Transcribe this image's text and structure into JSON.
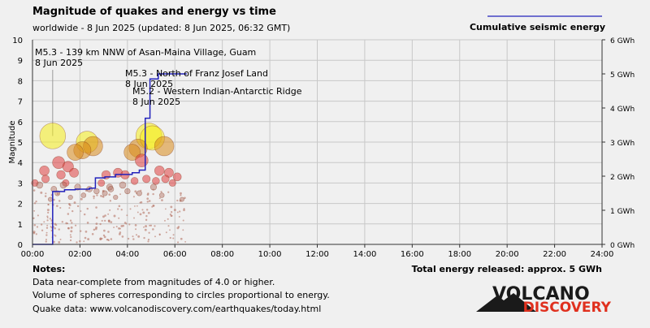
{
  "header": {
    "title": "Magnitude of quakes and energy vs time",
    "subtitle": "worldwide -  8 Jun 2025 (updated: 8 Jun 2025, 06:32 GMT)",
    "legend_label": "Cumulative seismic energy"
  },
  "notes": {
    "heading": "Notes:",
    "lines": [
      "Data near-complete from magnitudes of 4.0 or higher.",
      "Volume of spheres corresponding to circles proportional to energy.",
      "Quake data: www.volcanodiscovery.com/earthquakes/today.html"
    ],
    "total_energy": "Total energy released: approx. 5 GWh"
  },
  "logo": {
    "line1": "VOLCANO",
    "line2": "DISCOVERY"
  },
  "colors": {
    "background": "#f0f0f0",
    "grid": "#c8c8c8",
    "energy_line": "#2222bb",
    "large_quake": "#f5ee1a",
    "medium_quake": "#d98a1a",
    "small_quake": "#e04040",
    "tiny_quake": "#b06a5a",
    "logo_red": "#e0301e"
  },
  "chart_data": {
    "type": "scatter",
    "title": "Magnitude of quakes and energy vs time",
    "ylabel": "Magnitude",
    "y2label": "Cumulative seismic energy",
    "xlim": [
      0,
      24
    ],
    "ylim": [
      0,
      10
    ],
    "y2lim": [
      0,
      6
    ],
    "x_ticks": [
      "00:00",
      "02:00",
      "04:00",
      "06:00",
      "08:00",
      "10:00",
      "12:00",
      "14:00",
      "16:00",
      "18:00",
      "20:00",
      "22:00",
      "24:00"
    ],
    "y_ticks": [
      "0",
      "1",
      "2",
      "3",
      "4",
      "5",
      "6",
      "7",
      "8",
      "9",
      "10"
    ],
    "y2_ticks": [
      "0 GWh",
      "1 GWh",
      "2 GWh",
      "3 GWh",
      "4 GWh",
      "5 GWh",
      "6 GWh"
    ],
    "grid": true,
    "annotations": [
      {
        "line1": "M5.3 - 139 km NNW of Asan-Maina Village, Guam",
        "line2": "8 Jun 2025",
        "x": 0.9,
        "mag": 5.3
      },
      {
        "line1": "M5.3 - North of Franz Josef Land",
        "line2": "8 Jun 2025",
        "x": 4.8,
        "mag": 5.3
      },
      {
        "line1": "M5.2 - Western Indian-Antarctic Ridge",
        "line2": "8 Jun 2025",
        "x": 5.0,
        "mag": 5.2
      }
    ],
    "quakes": [
      {
        "t": 0.85,
        "mag": 5.3
      },
      {
        "t": 4.9,
        "mag": 5.3
      },
      {
        "t": 5.05,
        "mag": 5.2
      },
      {
        "t": 2.3,
        "mag": 5.0
      },
      {
        "t": 2.55,
        "mag": 4.8
      },
      {
        "t": 4.45,
        "mag": 4.7
      },
      {
        "t": 5.55,
        "mag": 4.8
      },
      {
        "t": 4.2,
        "mag": 4.5
      },
      {
        "t": 1.8,
        "mag": 4.5
      },
      {
        "t": 2.1,
        "mag": 4.6
      },
      {
        "t": 1.1,
        "mag": 4.0
      },
      {
        "t": 1.5,
        "mag": 3.8
      },
      {
        "t": 0.5,
        "mag": 3.6
      },
      {
        "t": 1.75,
        "mag": 3.5
      },
      {
        "t": 1.2,
        "mag": 3.4
      },
      {
        "t": 4.6,
        "mag": 4.1
      },
      {
        "t": 5.35,
        "mag": 3.6
      },
      {
        "t": 0.55,
        "mag": 3.2
      },
      {
        "t": 0.1,
        "mag": 3.0
      },
      {
        "t": 1.4,
        "mag": 3.0
      },
      {
        "t": 3.1,
        "mag": 3.4
      },
      {
        "t": 2.9,
        "mag": 3.0
      },
      {
        "t": 3.6,
        "mag": 3.5
      },
      {
        "t": 3.9,
        "mag": 3.4
      },
      {
        "t": 4.3,
        "mag": 3.1
      },
      {
        "t": 4.8,
        "mag": 3.2
      },
      {
        "t": 5.2,
        "mag": 3.1
      },
      {
        "t": 5.6,
        "mag": 3.2
      },
      {
        "t": 5.75,
        "mag": 3.5
      },
      {
        "t": 6.1,
        "mag": 3.3
      },
      {
        "t": 5.9,
        "mag": 3.0
      },
      {
        "t": 3.25,
        "mag": 2.8
      },
      {
        "t": 2.7,
        "mag": 2.6
      },
      {
        "t": 3.05,
        "mag": 2.5
      },
      {
        "t": 0.9,
        "mag": 2.7
      },
      {
        "t": 1.3,
        "mag": 2.9
      },
      {
        "t": 1.9,
        "mag": 2.8
      },
      {
        "t": 2.15,
        "mag": 2.4
      },
      {
        "t": 3.5,
        "mag": 2.3
      },
      {
        "t": 4.0,
        "mag": 2.6
      },
      {
        "t": 0.3,
        "mag": 2.9
      },
      {
        "t": 0.75,
        "mag": 2.2
      },
      {
        "t": 1.05,
        "mag": 2.5
      },
      {
        "t": 1.6,
        "mag": 2.3
      },
      {
        "t": 2.4,
        "mag": 2.7
      },
      {
        "t": 3.3,
        "mag": 2.7
      },
      {
        "t": 3.8,
        "mag": 2.9
      },
      {
        "t": 4.5,
        "mag": 2.5
      },
      {
        "t": 5.1,
        "mag": 2.8
      },
      {
        "t": 5.45,
        "mag": 2.4
      },
      {
        "t": 6.3,
        "mag": 2.2
      }
    ],
    "energy_steps": [
      {
        "t": 0.0,
        "gwh": 0.0
      },
      {
        "t": 0.85,
        "gwh": 1.55
      },
      {
        "t": 1.35,
        "gwh": 1.6
      },
      {
        "t": 1.8,
        "gwh": 1.62
      },
      {
        "t": 2.4,
        "gwh": 1.65
      },
      {
        "t": 2.65,
        "gwh": 1.95
      },
      {
        "t": 3.05,
        "gwh": 1.98
      },
      {
        "t": 3.5,
        "gwh": 2.05
      },
      {
        "t": 4.2,
        "gwh": 2.1
      },
      {
        "t": 4.5,
        "gwh": 2.18
      },
      {
        "t": 4.75,
        "gwh": 3.7
      },
      {
        "t": 4.95,
        "gwh": 4.85
      },
      {
        "t": 5.3,
        "gwh": 5.0
      },
      {
        "t": 6.5,
        "gwh": 5.0
      }
    ]
  }
}
